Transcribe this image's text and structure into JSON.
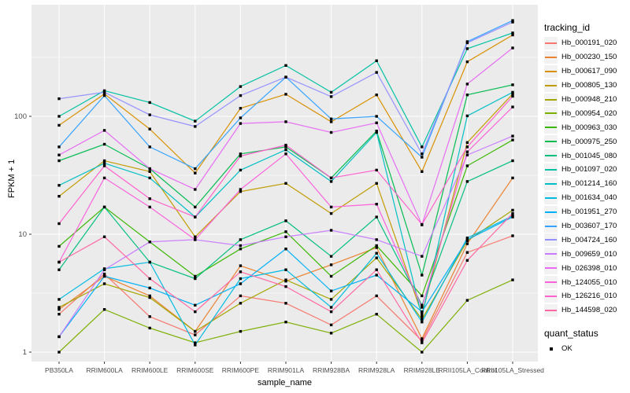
{
  "chart_data": {
    "type": "line",
    "title": "",
    "xlabel": "sample_name",
    "ylabel": "FPKM + 1",
    "y_scale": "log10",
    "y_ticks": [
      1,
      10,
      100
    ],
    "y_minor_ticks": [
      3.162,
      31.62,
      316.2
    ],
    "ylim": [
      0.93,
      885
    ],
    "grid": true,
    "legend_position": "right",
    "panel_bg": "#EBEBEB",
    "grid_color": "#FFFFFF",
    "point_color": "#000000",
    "axis_text_color": "#4D4D4D",
    "categories": [
      "PB350LA",
      "RRIM600LA",
      "RRIM600LE",
      "RRIM600SE",
      "RRIM600PE",
      "RRIM901LA",
      "RRIM928BA",
      "RRIM928LA",
      "RRIM928LE",
      "RRII105LA_Control",
      "RRII105LA_Stressed"
    ],
    "series": [
      {
        "name": "Hb_000191_020",
        "color": "#F8766D",
        "values": [
          2.1,
          4.6,
          2.0,
          1.4,
          3.0,
          2.6,
          1.7,
          3.0,
          1.25,
          7.0,
          9.7
        ]
      },
      {
        "name": "Hb_000230_150",
        "color": "#EA8331",
        "values": [
          2.3,
          4.4,
          3.0,
          1.5,
          5.4,
          4.0,
          5.5,
          7.7,
          1.3,
          8.3,
          30
        ]
      },
      {
        "name": "Hb_000617_090",
        "color": "#D89000",
        "values": [
          84,
          155,
          78,
          33,
          117,
          154,
          90,
          152,
          34,
          290,
          490
        ]
      },
      {
        "name": "Hb_000805_130",
        "color": "#C09B00",
        "values": [
          21,
          42,
          34,
          9.5,
          23,
          27,
          15,
          27,
          2.1,
          60,
          155
        ]
      },
      {
        "name": "Hb_000948_210",
        "color": "#A3A500",
        "values": [
          2.4,
          3.8,
          2.9,
          1.5,
          2.6,
          4.1,
          2.8,
          6.3,
          1.9,
          8.8,
          16
        ]
      },
      {
        "name": "Hb_000954_020",
        "color": "#7CAE00",
        "values": [
          1.0,
          2.3,
          1.6,
          1.2,
          1.5,
          1.8,
          1.45,
          2.1,
          1.0,
          2.75,
          4.1
        ]
      },
      {
        "name": "Hb_000963_030",
        "color": "#39B600",
        "values": [
          7.9,
          17,
          8.6,
          4.4,
          7.5,
          10.5,
          4.4,
          8.0,
          3.0,
          38,
          63
        ]
      },
      {
        "name": "Hb_000975_250",
        "color": "#00BB4E",
        "values": [
          42,
          58,
          36,
          17,
          48,
          55,
          30,
          75,
          4.5,
          152,
          185
        ]
      },
      {
        "name": "Hb_001045_080",
        "color": "#00BF7D",
        "values": [
          5.0,
          17,
          5.8,
          4.2,
          9.0,
          13,
          6.5,
          14,
          2.5,
          28,
          42
        ]
      },
      {
        "name": "Hb_001097_020",
        "color": "#00C1A3",
        "values": [
          100,
          165,
          131,
          91,
          179,
          270,
          160,
          296,
          55,
          375,
          510
        ]
      },
      {
        "name": "Hb_001214_160",
        "color": "#00BFC4",
        "values": [
          26,
          40,
          30,
          14,
          35,
          52,
          28,
          73,
          2.0,
          101,
          160
        ]
      },
      {
        "name": "Hb_001634_040",
        "color": "#00BAE0",
        "values": [
          2.8,
          5.1,
          5.8,
          1.15,
          4.2,
          5.0,
          2.4,
          6.9,
          1.8,
          9.3,
          14.3
        ]
      },
      {
        "name": "Hb_001951_270",
        "color": "#00B0F6",
        "values": [
          1.35,
          4.4,
          3.5,
          2.5,
          3.8,
          7.5,
          3.3,
          4.5,
          2.2,
          9.0,
          14
        ]
      },
      {
        "name": "Hb_003607_170",
        "color": "#35A2FF",
        "values": [
          55,
          150,
          55,
          36,
          97,
          215,
          95,
          100,
          45,
          430,
          650
        ]
      },
      {
        "name": "Hb_004724_160",
        "color": "#9590FF",
        "values": [
          141,
          160,
          103,
          82,
          150,
          215,
          147,
          236,
          48,
          420,
          630
        ]
      },
      {
        "name": "Hb_009659_010",
        "color": "#C77CFF",
        "values": [
          1.35,
          5.0,
          8.6,
          9.0,
          8.0,
          9.5,
          10.8,
          9.0,
          6.5,
          47,
          68
        ]
      },
      {
        "name": "Hb_026398_010",
        "color": "#E76BF3",
        "values": [
          47,
          76,
          36,
          24,
          87,
          90,
          73,
          88,
          12,
          188,
          380
        ]
      },
      {
        "name": "Hb_124055_010",
        "color": "#FA62DB",
        "values": [
          5.8,
          30,
          17,
          9.0,
          24,
          48,
          17,
          18,
          2.4,
          50,
          120
        ]
      },
      {
        "name": "Hb_126216_010",
        "color": "#FF61CC",
        "values": [
          12.3,
          38,
          20,
          14,
          46,
          57,
          30,
          35,
          12.1,
          55,
          148
        ]
      },
      {
        "name": "Hb_144598_020",
        "color": "#FF67A4",
        "values": [
          5.8,
          9.5,
          4.2,
          2.2,
          4.8,
          3.6,
          2.2,
          5.0,
          1.2,
          6.0,
          15
        ]
      }
    ],
    "legend": {
      "tracking_title": "tracking_id",
      "quant_title": "quant_status",
      "quant_items": [
        {
          "label": "OK",
          "marker": "black-square"
        }
      ]
    }
  }
}
